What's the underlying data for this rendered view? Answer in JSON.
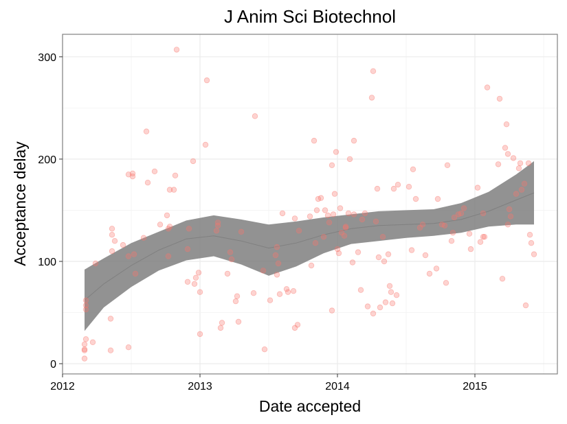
{
  "chart_data": {
    "type": "scatter",
    "title": "J Anim Sci Biotechnol",
    "xlabel": "Date accepted",
    "ylabel": "Acceptance delay",
    "x_ticks": [
      {
        "value": 2012,
        "label": "2012"
      },
      {
        "value": 2013,
        "label": "2013"
      },
      {
        "value": 2014,
        "label": "2014"
      },
      {
        "value": 2015,
        "label": "2015"
      }
    ],
    "y_ticks": [
      {
        "value": 0,
        "label": "0"
      },
      {
        "value": 100,
        "label": "100"
      },
      {
        "value": 200,
        "label": "200"
      },
      {
        "value": 300,
        "label": "300"
      }
    ],
    "xlim": [
      2012.0,
      2015.6
    ],
    "ylim": [
      -10,
      322
    ],
    "grid": true,
    "colors": {
      "point": "#f8766d",
      "band": "#7f7f7f",
      "border": "#808080",
      "grid": "#ebebeb"
    },
    "points": [
      [
        2012.16,
        5
      ],
      [
        2012.16,
        13
      ],
      [
        2012.16,
        14
      ],
      [
        2012.16,
        19
      ],
      [
        2012.17,
        24
      ],
      [
        2012.17,
        53
      ],
      [
        2012.17,
        57
      ],
      [
        2012.17,
        62
      ],
      [
        2012.22,
        21
      ],
      [
        2012.24,
        98
      ],
      [
        2012.35,
        13
      ],
      [
        2012.35,
        44
      ],
      [
        2012.36,
        110
      ],
      [
        2012.36,
        126
      ],
      [
        2012.36,
        132
      ],
      [
        2012.38,
        120
      ],
      [
        2012.44,
        116
      ],
      [
        2012.48,
        16
      ],
      [
        2012.48,
        105
      ],
      [
        2012.48,
        185
      ],
      [
        2012.51,
        186
      ],
      [
        2012.51,
        183
      ],
      [
        2012.52,
        107
      ],
      [
        2012.53,
        88
      ],
      [
        2012.59,
        123
      ],
      [
        2012.61,
        227
      ],
      [
        2012.62,
        177
      ],
      [
        2012.67,
        188
      ],
      [
        2012.71,
        136
      ],
      [
        2012.76,
        145
      ],
      [
        2012.77,
        105
      ],
      [
        2012.77,
        132
      ],
      [
        2012.78,
        134
      ],
      [
        2012.78,
        170
      ],
      [
        2012.81,
        170
      ],
      [
        2012.82,
        184
      ],
      [
        2012.83,
        307
      ],
      [
        2012.91,
        112
      ],
      [
        2012.92,
        132
      ],
      [
        2012.91,
        80
      ],
      [
        2012.95,
        198
      ],
      [
        2012.96,
        78
      ],
      [
        2012.97,
        84
      ],
      [
        2012.99,
        89
      ],
      [
        2013.0,
        70
      ],
      [
        2013.0,
        29
      ],
      [
        2013.12,
        130
      ],
      [
        2013.13,
        135
      ],
      [
        2013.13,
        138
      ],
      [
        2013.15,
        35
      ],
      [
        2013.16,
        40
      ],
      [
        2013.2,
        88
      ],
      [
        2013.04,
        214
      ],
      [
        2013.05,
        277
      ],
      [
        2013.22,
        109
      ],
      [
        2013.23,
        102
      ],
      [
        2013.26,
        61
      ],
      [
        2013.27,
        66
      ],
      [
        2013.28,
        41
      ],
      [
        2013.3,
        129
      ],
      [
        2013.39,
        69
      ],
      [
        2013.4,
        242
      ],
      [
        2013.46,
        91
      ],
      [
        2013.47,
        14
      ],
      [
        2013.51,
        62
      ],
      [
        2013.55,
        106
      ],
      [
        2013.56,
        87
      ],
      [
        2013.56,
        114
      ],
      [
        2013.57,
        98
      ],
      [
        2013.58,
        68
      ],
      [
        2013.6,
        147
      ],
      [
        2013.63,
        73
      ],
      [
        2013.64,
        70
      ],
      [
        2013.68,
        71
      ],
      [
        2013.69,
        35
      ],
      [
        2013.69,
        142
      ],
      [
        2013.71,
        38
      ],
      [
        2013.72,
        130
      ],
      [
        2013.8,
        144
      ],
      [
        2013.81,
        96
      ],
      [
        2013.83,
        218
      ],
      [
        2013.84,
        118
      ],
      [
        2013.85,
        150
      ],
      [
        2013.86,
        161
      ],
      [
        2013.88,
        162
      ],
      [
        2013.9,
        124
      ],
      [
        2013.91,
        150
      ],
      [
        2013.93,
        145
      ],
      [
        2013.94,
        138
      ],
      [
        2013.96,
        194
      ],
      [
        2013.97,
        146
      ],
      [
        2013.96,
        52
      ],
      [
        2013.98,
        166
      ],
      [
        2013.99,
        207
      ],
      [
        2014.0,
        112
      ],
      [
        2014.01,
        108
      ],
      [
        2014.02,
        152
      ],
      [
        2014.03,
        128
      ],
      [
        2014.05,
        125
      ],
      [
        2014.06,
        134
      ],
      [
        2014.06,
        133
      ],
      [
        2014.08,
        147
      ],
      [
        2014.09,
        200
      ],
      [
        2014.11,
        99
      ],
      [
        2014.12,
        146
      ],
      [
        2014.12,
        218
      ],
      [
        2014.15,
        109
      ],
      [
        2014.17,
        72
      ],
      [
        2014.18,
        141
      ],
      [
        2014.2,
        147
      ],
      [
        2014.22,
        56
      ],
      [
        2014.25,
        260
      ],
      [
        2014.26,
        286
      ],
      [
        2014.26,
        49
      ],
      [
        2014.28,
        139
      ],
      [
        2014.29,
        171
      ],
      [
        2014.3,
        104
      ],
      [
        2014.31,
        55
      ],
      [
        2014.33,
        124
      ],
      [
        2014.34,
        100
      ],
      [
        2014.35,
        60
      ],
      [
        2014.37,
        107
      ],
      [
        2014.38,
        76
      ],
      [
        2014.39,
        70
      ],
      [
        2014.4,
        59
      ],
      [
        2014.41,
        171
      ],
      [
        2014.43,
        67
      ],
      [
        2014.44,
        175
      ],
      [
        2014.52,
        173
      ],
      [
        2014.54,
        111
      ],
      [
        2014.55,
        190
      ],
      [
        2014.57,
        161
      ],
      [
        2014.6,
        133
      ],
      [
        2014.62,
        136
      ],
      [
        2014.64,
        106
      ],
      [
        2014.67,
        88
      ],
      [
        2014.72,
        93
      ],
      [
        2014.73,
        161
      ],
      [
        2014.76,
        136
      ],
      [
        2014.78,
        135
      ],
      [
        2014.79,
        79
      ],
      [
        2014.8,
        194
      ],
      [
        2014.83,
        120
      ],
      [
        2014.84,
        128
      ],
      [
        2014.85,
        143
      ],
      [
        2014.88,
        146
      ],
      [
        2014.9,
        147
      ],
      [
        2014.92,
        152
      ],
      [
        2014.96,
        127
      ],
      [
        2014.97,
        112
      ],
      [
        2015.02,
        172
      ],
      [
        2015.04,
        119
      ],
      [
        2015.06,
        124
      ],
      [
        2015.06,
        147
      ],
      [
        2015.07,
        124
      ],
      [
        2015.09,
        270
      ],
      [
        2015.17,
        195
      ],
      [
        2015.18,
        259
      ],
      [
        2015.2,
        83
      ],
      [
        2015.22,
        211
      ],
      [
        2015.23,
        234
      ],
      [
        2015.24,
        136
      ],
      [
        2015.24,
        205
      ],
      [
        2015.25,
        151
      ],
      [
        2015.26,
        144
      ],
      [
        2015.28,
        201
      ],
      [
        2015.3,
        166
      ],
      [
        2015.32,
        191
      ],
      [
        2015.33,
        196
      ],
      [
        2015.34,
        170
      ],
      [
        2015.36,
        176
      ],
      [
        2015.37,
        57
      ],
      [
        2015.39,
        196
      ],
      [
        2015.4,
        126
      ],
      [
        2015.41,
        118
      ],
      [
        2015.43,
        107
      ]
    ],
    "smooth": {
      "x": [
        2012.16,
        2012.3,
        2012.5,
        2012.7,
        2012.9,
        2013.1,
        2013.3,
        2013.5,
        2013.7,
        2013.9,
        2014.1,
        2014.3,
        2014.5,
        2014.7,
        2014.9,
        2015.1,
        2015.3,
        2015.43
      ],
      "fit": [
        62,
        78,
        96,
        111,
        122,
        125,
        120,
        113,
        118,
        126,
        132,
        135,
        136,
        137,
        141,
        149,
        160,
        167
      ],
      "lower": [
        32,
        55,
        75,
        91,
        101,
        105,
        97,
        86,
        95,
        108,
        117,
        120,
        123,
        125,
        128,
        134,
        136,
        136
      ],
      "upper": [
        92,
        103,
        118,
        129,
        140,
        145,
        141,
        136,
        139,
        143,
        146,
        149,
        150,
        151,
        157,
        168,
        185,
        198
      ]
    }
  }
}
